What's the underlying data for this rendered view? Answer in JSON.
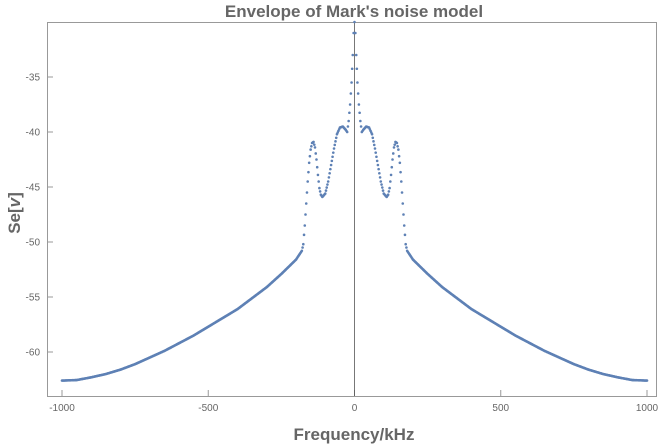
{
  "chart_data": {
    "type": "scatter",
    "title": "Envelope of Mark's noise model",
    "xlabel": "Frequency/kHz",
    "ylabel_main": "Se",
    "ylabel_bracket_open": "[",
    "ylabel_var": "v",
    "ylabel_bracket_close": "]",
    "xlim": [
      -1000,
      1000
    ],
    "ylim": [
      -64,
      -30
    ],
    "xticks": [
      -1000,
      -500,
      0,
      500,
      1000
    ],
    "xtick_labels": [
      "-1000",
      "-500",
      "0",
      "500",
      "1000"
    ],
    "yticks": [
      -35,
      -40,
      -45,
      -50,
      -55,
      -60
    ],
    "ytick_labels": [
      "-35",
      "-40",
      "-45",
      "-50",
      "-55",
      "-60"
    ],
    "grid": false,
    "marker_color": "#5E81B5",
    "axis_line_color": "#555555",
    "series": [
      {
        "points": [
          [
            -1000,
            -62.6
          ],
          [
            -950,
            -62.55
          ],
          [
            -900,
            -62.3
          ],
          [
            -850,
            -62.0
          ],
          [
            -800,
            -61.6
          ],
          [
            -750,
            -61.1
          ],
          [
            -700,
            -60.5
          ],
          [
            -650,
            -59.9
          ],
          [
            -600,
            -59.2
          ],
          [
            -550,
            -58.5
          ],
          [
            -500,
            -57.7
          ],
          [
            -450,
            -56.9
          ],
          [
            -400,
            -56.1
          ],
          [
            -350,
            -55.1
          ],
          [
            -300,
            -54.1
          ],
          [
            -250,
            -52.9
          ],
          [
            -200,
            -51.6
          ],
          [
            -180,
            -50.8
          ],
          [
            -175,
            -50.2
          ],
          [
            -170,
            -48.5
          ],
          [
            -165,
            -46.5
          ],
          [
            -160,
            -44.5
          ],
          [
            -155,
            -42.8
          ],
          [
            -150,
            -41.6
          ],
          [
            -145,
            -41.0
          ],
          [
            -140,
            -40.9
          ],
          [
            -135,
            -41.4
          ],
          [
            -130,
            -42.5
          ],
          [
            -125,
            -43.9
          ],
          [
            -120,
            -45.1
          ],
          [
            -115,
            -45.7
          ],
          [
            -110,
            -45.9
          ],
          [
            -100,
            -45.6
          ],
          [
            -90,
            -44.5
          ],
          [
            -80,
            -43.0
          ],
          [
            -70,
            -41.5
          ],
          [
            -60,
            -40.2
          ],
          [
            -50,
            -39.6
          ],
          [
            -40,
            -39.5
          ],
          [
            -30,
            -39.8
          ],
          [
            -25,
            -40.0
          ],
          [
            -20,
            -39.0
          ],
          [
            -15,
            -37.5
          ],
          [
            -10,
            -35.5
          ],
          [
            -6,
            -33.0
          ],
          [
            -3,
            -31.0
          ],
          [
            0,
            -30.0
          ],
          [
            3,
            -31.0
          ],
          [
            6,
            -33.0
          ],
          [
            10,
            -35.5
          ],
          [
            15,
            -37.5
          ],
          [
            20,
            -39.0
          ],
          [
            25,
            -40.0
          ],
          [
            30,
            -39.8
          ],
          [
            40,
            -39.5
          ],
          [
            50,
            -39.6
          ],
          [
            60,
            -40.2
          ],
          [
            70,
            -41.5
          ],
          [
            80,
            -43.0
          ],
          [
            90,
            -44.5
          ],
          [
            100,
            -45.6
          ],
          [
            110,
            -45.9
          ],
          [
            115,
            -45.7
          ],
          [
            120,
            -45.1
          ],
          [
            125,
            -43.9
          ],
          [
            130,
            -42.5
          ],
          [
            135,
            -41.4
          ],
          [
            140,
            -40.9
          ],
          [
            145,
            -41.0
          ],
          [
            150,
            -41.6
          ],
          [
            155,
            -42.8
          ],
          [
            160,
            -44.5
          ],
          [
            165,
            -46.5
          ],
          [
            170,
            -48.5
          ],
          [
            175,
            -50.2
          ],
          [
            180,
            -50.8
          ],
          [
            200,
            -51.6
          ],
          [
            250,
            -52.9
          ],
          [
            300,
            -54.1
          ],
          [
            350,
            -55.1
          ],
          [
            400,
            -56.1
          ],
          [
            450,
            -56.9
          ],
          [
            500,
            -57.7
          ],
          [
            550,
            -58.5
          ],
          [
            600,
            -59.2
          ],
          [
            650,
            -59.9
          ],
          [
            700,
            -60.5
          ],
          [
            750,
            -61.1
          ],
          [
            800,
            -61.6
          ],
          [
            850,
            -62.0
          ],
          [
            900,
            -62.3
          ],
          [
            950,
            -62.55
          ],
          [
            1000,
            -62.6
          ]
        ]
      }
    ]
  }
}
